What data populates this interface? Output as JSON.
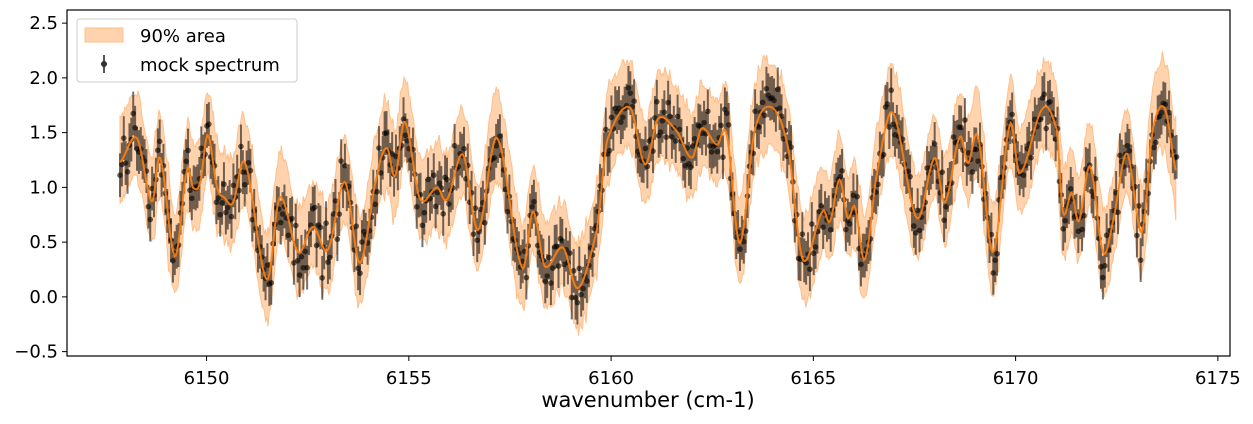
{
  "chart_data": {
    "type": "line",
    "title": "",
    "xlabel": "wavenumber (cm-1)",
    "ylabel": "",
    "xlim": [
      6146.55,
      6175.3
    ],
    "ylim": [
      -0.54,
      2.62
    ],
    "xticks": [
      6150,
      6155,
      6160,
      6165,
      6170,
      6175
    ],
    "xtick_labels": [
      "6150",
      "6155",
      "6160",
      "6165",
      "6170",
      "6175"
    ],
    "yticks": [
      -0.5,
      0.0,
      0.5,
      1.0,
      1.5,
      2.0,
      2.5
    ],
    "ytick_labels": [
      "−0.5",
      "0.0",
      "0.5",
      "1.0",
      "1.5",
      "2.0",
      "2.5"
    ],
    "grid": false,
    "legend": {
      "placement": "top-left",
      "entries": [
        {
          "label": "90% area",
          "kind": "band"
        },
        {
          "label": "mock spectrum",
          "kind": "errorbar"
        }
      ]
    },
    "colors": {
      "model": "#ff7f0e",
      "band": "#ffd3ad",
      "band_edge": "#ffbf8a",
      "points": "#000000"
    },
    "model": {
      "x": [
        6147.86,
        6148.28,
        6148.65,
        6148.85,
        6149.22,
        6149.52,
        6149.66,
        6149.84,
        6150.03,
        6150.26,
        6150.43,
        6150.65,
        6150.95,
        6151.49,
        6151.81,
        6152.26,
        6152.63,
        6153.0,
        6153.42,
        6153.79,
        6154.21,
        6154.46,
        6154.66,
        6154.9,
        6155.27,
        6155.7,
        6155.94,
        6156.34,
        6156.71,
        6157.18,
        6157.8,
        6158.07,
        6158.36,
        6158.81,
        6159.18,
        6159.65,
        6159.9,
        6160.47,
        6160.84,
        6161.16,
        6161.63,
        6162.0,
        6162.24,
        6162.62,
        6162.86,
        6163.18,
        6163.55,
        6163.97,
        6164.37,
        6164.74,
        6165.23,
        6165.41,
        6165.65,
        6165.85,
        6166.03,
        6166.27,
        6166.57,
        6166.96,
        6167.56,
        6168.0,
        6168.25,
        6168.62,
        6168.82,
        6169.07,
        6169.44,
        6169.86,
        6170.1,
        6170.67,
        6171.02,
        6171.17,
        6171.39,
        6171.56,
        6171.84,
        6172.16,
        6172.4,
        6172.75,
        6173.12,
        6173.39,
        6173.69,
        6173.98
      ],
      "y": [
        1.23,
        1.45,
        0.87,
        1.27,
        0.37,
        1.16,
        1.0,
        1.04,
        1.48,
        1.0,
        0.91,
        0.86,
        1.22,
        0.16,
        0.91,
        0.41,
        0.64,
        0.43,
        1.05,
        0.31,
        1.1,
        1.36,
        1.1,
        1.6,
        0.9,
        1.0,
        0.89,
        1.3,
        0.61,
        1.45,
        0.27,
        0.78,
        0.28,
        0.45,
        0.08,
        0.61,
        1.43,
        1.73,
        1.21,
        1.63,
        1.51,
        1.27,
        1.54,
        1.39,
        1.48,
        0.49,
        1.52,
        1.73,
        1.37,
        0.34,
        0.78,
        0.69,
        1.07,
        0.72,
        0.82,
        0.34,
        1.13,
        1.68,
        0.72,
        1.27,
        0.86,
        1.46,
        1.22,
        1.46,
        0.41,
        1.57,
        1.13,
        1.72,
        1.52,
        0.77,
        0.95,
        0.69,
        1.19,
        0.41,
        0.68,
        1.31,
        0.59,
        1.52,
        1.72,
        1.13
      ]
    },
    "band_upper_offset": 0.36,
    "band_lower_offset": 0.32,
    "points": {
      "count": 560,
      "x_range": [
        6147.86,
        6173.98
      ],
      "scatter": 0.2,
      "error": 0.2
    }
  }
}
